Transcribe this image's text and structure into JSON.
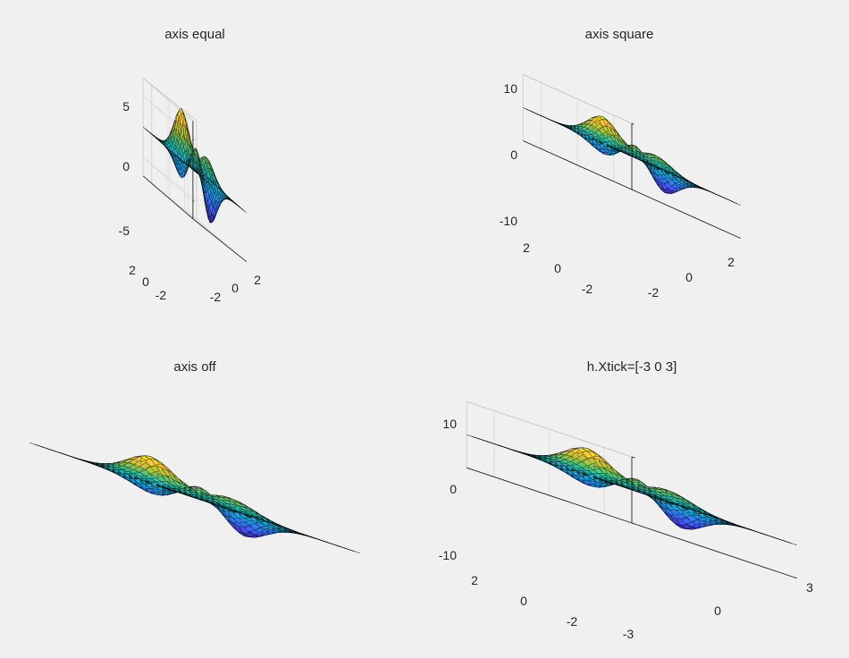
{
  "figure": {
    "background": "#f0f0f0",
    "function": "peaks",
    "colormap": "parula"
  },
  "chart_data": [
    {
      "type": "surface",
      "title": "axis equal",
      "axis_mode": "equal",
      "axes_visible": true,
      "x_ticks": [
        "-2",
        "0",
        "2"
      ],
      "y_ticks": [
        "-2",
        "0",
        "2"
      ],
      "z_ticks": [
        "-5",
        "0",
        "5"
      ],
      "xlim": [
        -3,
        3
      ],
      "ylim": [
        -3,
        3
      ],
      "zlim": [
        -8,
        8
      ]
    },
    {
      "type": "surface",
      "title": "axis square",
      "axis_mode": "square",
      "axes_visible": true,
      "x_ticks": [
        "-2",
        "0",
        "2"
      ],
      "y_ticks": [
        "-2",
        "0",
        "2"
      ],
      "z_ticks": [
        "-10",
        "0",
        "10"
      ],
      "xlim": [
        -3,
        3
      ],
      "ylim": [
        -3,
        3
      ],
      "zlim": [
        -10,
        10
      ]
    },
    {
      "type": "surface",
      "title": "axis off",
      "axis_mode": "off",
      "axes_visible": false,
      "x_ticks": [],
      "y_ticks": [],
      "z_ticks": [],
      "xlim": [
        -3,
        3
      ],
      "ylim": [
        -3,
        3
      ],
      "zlim": [
        -10,
        10
      ]
    },
    {
      "type": "surface",
      "title": "h.Xtick=[-3 0 3]",
      "axis_mode": "normal",
      "axes_visible": true,
      "x_ticks": [
        "-3",
        "0",
        "3"
      ],
      "y_ticks": [
        "-2",
        "0",
        "2"
      ],
      "z_ticks": [
        "-10",
        "0",
        "10"
      ],
      "xlim": [
        -3,
        3
      ],
      "ylim": [
        -3,
        3
      ],
      "zlim": [
        -10,
        10
      ]
    }
  ]
}
